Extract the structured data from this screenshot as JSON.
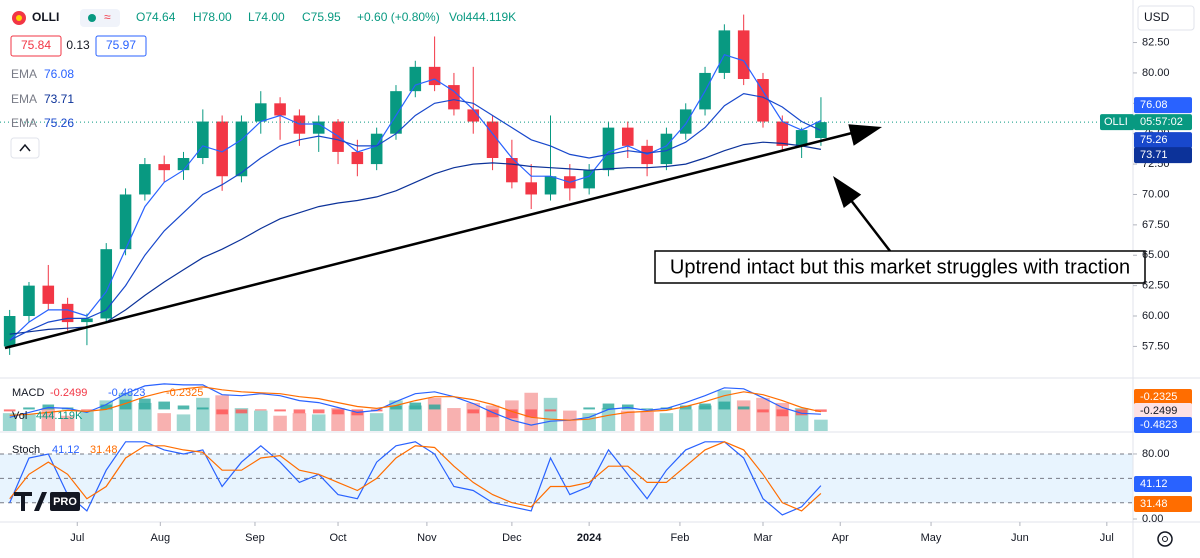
{
  "header": {
    "symbol": "OLLI",
    "open": "O74.64",
    "high": "H78.00",
    "low": "L74.00",
    "close": "C75.95",
    "change": "+0.60 (+0.80%)",
    "volume": "Vol444.119K",
    "bid": "75.84",
    "spread": "0.13",
    "ask": "75.97",
    "currency": "USD",
    "countdown": "05:57:02",
    "logo": "PRO"
  },
  "chart_data": [
    {
      "type": "candlestick",
      "xlim": [
        -0.5,
        58
      ],
      "xticks": [
        {
          "value": 3.5,
          "label": "Jul"
        },
        {
          "value": 7.8,
          "label": "Aug"
        },
        {
          "value": 12.7,
          "label": "Sep"
        },
        {
          "value": 17,
          "label": "Oct"
        },
        {
          "value": 21.6,
          "label": "Nov"
        },
        {
          "value": 26,
          "label": "Dec"
        },
        {
          "value": 30,
          "label": "2024",
          "bold": true
        },
        {
          "value": 34.7,
          "label": "Feb"
        },
        {
          "value": 39,
          "label": "Mar"
        },
        {
          "value": 43,
          "label": "Apr"
        },
        {
          "value": 47.7,
          "label": "May"
        },
        {
          "value": 52.3,
          "label": "Jun"
        },
        {
          "value": 56.8,
          "label": "Jul"
        }
      ],
      "ylim": [
        54.9,
        86.0
      ],
      "yticks": [
        {
          "value": 57.5,
          "label": "57.50"
        },
        {
          "value": 60,
          "label": "60.00"
        },
        {
          "value": 62.5,
          "label": "62.50"
        },
        {
          "value": 65,
          "label": "65.00"
        },
        {
          "value": 67.5,
          "label": "67.50"
        },
        {
          "value": 70,
          "label": "70.00"
        },
        {
          "value": 72.5,
          "label": "72.50"
        },
        {
          "value": 75,
          "label": "75.00"
        },
        {
          "value": 77.5,
          "label": "77.50"
        },
        {
          "value": 80,
          "label": "80.00"
        },
        {
          "value": 82.5,
          "label": "82.50"
        }
      ],
      "up_color": "#089981",
      "down_color": "#f23645",
      "open": [
        57.5,
        60.0,
        62.5,
        61.0,
        59.5,
        59.8,
        65.5,
        70.0,
        72.5,
        72.0,
        73.0,
        76.0,
        71.5,
        76.0,
        77.5,
        76.5,
        75.0,
        76.0,
        73.5,
        72.5,
        75.0,
        78.5,
        80.5,
        79.0,
        77.0,
        76.0,
        73.0,
        71.0,
        70.0,
        71.5,
        70.5,
        72.0,
        75.5,
        74.0,
        72.5,
        75.0,
        77.0,
        80.0,
        83.5,
        79.5,
        76.0,
        74.0,
        74.64
      ],
      "high": [
        60.5,
        62.8,
        64.2,
        61.5,
        60.2,
        66.0,
        70.5,
        73.0,
        73.2,
        73.5,
        77.0,
        76.5,
        76.5,
        78.5,
        78.0,
        77.0,
        76.5,
        76.2,
        74.5,
        75.5,
        79.0,
        81.0,
        83.0,
        80.0,
        80.5,
        76.5,
        74.5,
        72.5,
        76.5,
        72.5,
        72.5,
        76.0,
        76.0,
        74.5,
        75.5,
        77.5,
        80.5,
        84.0,
        84.8,
        80.0,
        76.5,
        75.5,
        78.0
      ],
      "low": [
        56.8,
        59.5,
        60.5,
        58.8,
        57.6,
        59.5,
        65.0,
        69.5,
        71.0,
        71.2,
        72.5,
        70.3,
        71.0,
        75.0,
        74.5,
        74.0,
        73.5,
        72.5,
        71.5,
        72.0,
        74.5,
        78.0,
        78.5,
        76.5,
        75.0,
        72.0,
        70.5,
        68.8,
        69.5,
        69.5,
        70.0,
        71.5,
        73.0,
        71.5,
        72.0,
        74.5,
        76.5,
        79.5,
        79.0,
        75.5,
        73.5,
        73.0,
        74.0
      ],
      "close": [
        60.0,
        62.5,
        61.0,
        59.5,
        59.8,
        65.5,
        70.0,
        72.5,
        72.0,
        73.0,
        76.0,
        71.5,
        76.0,
        77.5,
        76.5,
        75.0,
        76.0,
        73.5,
        72.5,
        75.0,
        78.5,
        80.5,
        79.0,
        77.0,
        76.0,
        73.0,
        71.0,
        70.0,
        71.5,
        70.5,
        72.0,
        75.5,
        74.0,
        72.5,
        75.0,
        77.0,
        80.0,
        83.5,
        79.5,
        76.0,
        74.0,
        75.3,
        75.95
      ],
      "series": [
        {
          "name": "EMA",
          "color": "#2962ff",
          "value_label": "76.08",
          "values": [
            58,
            59.5,
            60.5,
            60.5,
            60,
            62,
            65.5,
            69,
            71,
            72,
            74,
            73.5,
            74.5,
            76,
            76.5,
            75.8,
            75.8,
            74.8,
            73.5,
            74,
            76.5,
            79,
            79.5,
            78.5,
            77,
            75,
            73,
            71.5,
            71.5,
            71,
            71.5,
            73.5,
            74,
            73.3,
            74,
            75.8,
            78.5,
            81.5,
            81,
            78.5,
            76,
            75.3,
            76.08
          ]
        },
        {
          "name": "EMA",
          "color": "#0c3299",
          "value_label": "73.71",
          "values": [
            58.5,
            58.7,
            58.9,
            59.0,
            59.1,
            59.5,
            60.5,
            61.7,
            62.8,
            63.8,
            64.8,
            65.5,
            66.3,
            67.2,
            68,
            68.5,
            69,
            69.3,
            69.5,
            69.8,
            70.3,
            71,
            71.7,
            72.2,
            72.5,
            72.6,
            72.5,
            72.3,
            72.2,
            72.1,
            72,
            72.1,
            72.2,
            72.2,
            72.3,
            72.5,
            73,
            73.6,
            74.1,
            74.3,
            74.2,
            74,
            73.71
          ]
        },
        {
          "name": "EMA",
          "color": "#1848cc",
          "value_label": "75.26",
          "values": [
            58,
            58.8,
            59.5,
            59.8,
            59.8,
            60.5,
            62.5,
            65,
            67,
            68.5,
            70,
            70.8,
            71.8,
            73,
            74,
            74.5,
            74.8,
            74.5,
            74,
            74,
            75,
            76.5,
            77.5,
            77.8,
            77.5,
            76.5,
            75.5,
            74.5,
            74,
            73.3,
            73,
            73.3,
            73.6,
            73.4,
            73.6,
            74.3,
            75.5,
            77.3,
            78.3,
            78,
            77.2,
            76,
            75.26
          ]
        }
      ],
      "annotation": "Uptrend intact but this market struggles with traction"
    },
    {
      "type": "macd",
      "title": "MACD",
      "ylim": [
        -2.2,
        3.0
      ],
      "histogram": {
        "up_color": "#26a69a",
        "down_color": "#ff5252",
        "value_label": "-0.2499",
        "values": [
          -0.2,
          0.2,
          0.5,
          0.2,
          -0.1,
          0.5,
          1.0,
          1.1,
          0.8,
          0.4,
          0.2,
          -0.5,
          -0.4,
          -0.1,
          -0.2,
          -0.4,
          -0.4,
          -0.5,
          -0.6,
          -0.2,
          0.4,
          0.7,
          0.5,
          0,
          -0.4,
          -0.8,
          -0.9,
          -0.8,
          -0.2,
          0,
          0.2,
          0.6,
          0.5,
          0.1,
          0.2,
          0.4,
          0.6,
          0.8,
          0.3,
          -0.3,
          -0.7,
          -0.6,
          -0.2499
        ]
      },
      "macd": {
        "color": "#2962ff",
        "value_label": "-0.4823",
        "values": [
          -0.8,
          -0.3,
          0.2,
          0.1,
          -0.3,
          0.5,
          1.6,
          2.4,
          2.6,
          2.5,
          2.5,
          1.5,
          1.4,
          1.6,
          1.4,
          0.9,
          0.7,
          0.2,
          -0.3,
          -0.1,
          0.8,
          1.6,
          1.8,
          1.3,
          0.6,
          -0.3,
          -1.1,
          -1.6,
          -1.2,
          -1.1,
          -0.8,
          0,
          0.2,
          -0.1,
          0.1,
          0.7,
          1.4,
          2.2,
          2.1,
          1.2,
          0.2,
          -0.4,
          -0.4823
        ]
      },
      "signal": {
        "color": "#ff6d00",
        "value_label": "-0.2325",
        "values": [
          -0.6,
          -0.5,
          -0.3,
          -0.1,
          -0.2,
          0,
          0.6,
          1.3,
          1.8,
          2.1,
          2.3,
          2.0,
          1.8,
          1.7,
          1.6,
          1.3,
          1.1,
          0.7,
          0.3,
          0.1,
          0.4,
          0.9,
          1.3,
          1.3,
          1.0,
          0.5,
          -0.2,
          -0.8,
          -1.0,
          -1.1,
          -1.0,
          -0.6,
          -0.3,
          -0.2,
          -0.1,
          0.3,
          0.8,
          1.4,
          1.8,
          1.5,
          0.9,
          0.2,
          -0.2325
        ]
      },
      "volume": {
        "name": "Vol",
        "value_label": "444.119K",
        "ylim": [
          0,
          2000000
        ],
        "values": [
          700000,
          650000,
          900000,
          600000,
          800000,
          1200000,
          1500000,
          1100000,
          700000,
          650000,
          1300000,
          1400000,
          900000,
          800000,
          600000,
          700000,
          650000,
          900000,
          750000,
          700000,
          1200000,
          1000000,
          1300000,
          900000,
          1100000,
          1000000,
          1200000,
          1500000,
          1300000,
          800000,
          700000,
          900000,
          800000,
          750000,
          700000,
          850000,
          1000000,
          1600000,
          1200000,
          1300000,
          1100000,
          900000,
          444119
        ]
      }
    },
    {
      "type": "stoch",
      "title": "Stoch",
      "ylim": [
        -3.7,
        105.8
      ],
      "yticks": [
        {
          "value": 80,
          "label": "80.00"
        },
        {
          "value": 0,
          "label": "0.00"
        }
      ],
      "band": [
        20,
        80
      ],
      "midline": 50,
      "k": {
        "color": "#2962ff",
        "value_label": "41.12",
        "values": [
          20,
          75,
          80,
          30,
          10,
          60,
          95,
          95,
          85,
          80,
          85,
          40,
          70,
          90,
          70,
          45,
          55,
          30,
          25,
          70,
          90,
          95,
          80,
          40,
          35,
          20,
          15,
          10,
          75,
          30,
          40,
          85,
          55,
          25,
          60,
          85,
          95,
          95,
          75,
          25,
          5,
          15,
          41.12
        ]
      },
      "d": {
        "color": "#ff6d00",
        "value_label": "31.48",
        "values": [
          25,
          55,
          70,
          55,
          25,
          40,
          75,
          90,
          90,
          85,
          82,
          60,
          60,
          75,
          78,
          60,
          55,
          45,
          35,
          50,
          75,
          90,
          88,
          65,
          45,
          30,
          20,
          15,
          40,
          40,
          45,
          65,
          65,
          45,
          45,
          65,
          85,
          95,
          85,
          55,
          20,
          10,
          31.48
        ]
      }
    }
  ]
}
